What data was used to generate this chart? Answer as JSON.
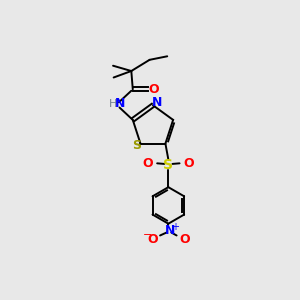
{
  "bg_color": "#e8e8e8",
  "bond_color": "#000000",
  "colors": {
    "N": "#0000ff",
    "O": "#ff0000",
    "S_thiazole": "#999900",
    "S_sulfonyl": "#cccc00",
    "H": "#708090",
    "NO2_N": "#0000ff",
    "NO2_O": "#ff0000"
  },
  "figsize": [
    3.0,
    3.0
  ],
  "dpi": 100
}
